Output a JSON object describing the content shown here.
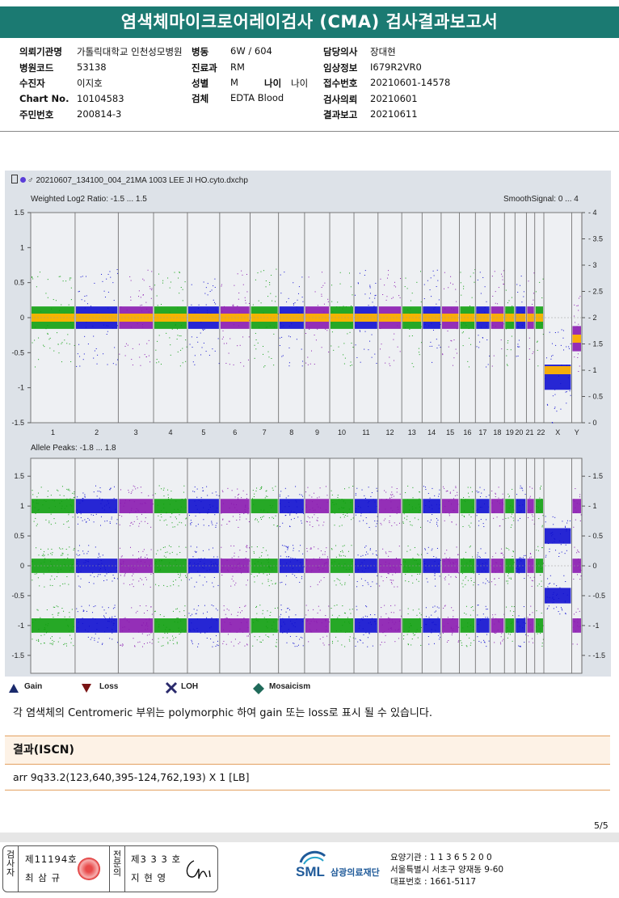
{
  "report_title": "염색체마이크로어레이검사 (CMA) 검사결과보고서",
  "patient_info": {
    "requester_label": "의뢰기관명",
    "requester_value": "가톨릭대학교 인천성모병원",
    "ward_label": "병동",
    "ward_value": "6W / 604",
    "doctor_label": "담당의사",
    "doctor_value": "장대현",
    "hospital_code_label": "병원코드",
    "hospital_code_value": "53138",
    "dept_label": "진료과",
    "dept_value": "RM",
    "clinical_label": "임상정보",
    "clinical_value": "I679R2VR0",
    "recipient_label": "수진자",
    "recipient_value": "이지호",
    "sex_label": "성별",
    "sex_value": "M",
    "age_label": "나이",
    "age_value": "나이",
    "accession_label": "접수번호",
    "accession_value": "20210601-14578",
    "chart_label": "Chart No.",
    "chart_value": "10104583",
    "specimen_label": "검체",
    "specimen_value": "EDTA Blood",
    "test_req_label": "검사의뢰",
    "test_req_value": "20210601",
    "rrn_label": "주민번호",
    "rrn_value": "200814-3",
    "report_date_label": "결과보고",
    "report_date_value": "20210611"
  },
  "chart_data": [
    {
      "type": "scatter",
      "file_name": "20210607_134100_004_21MA 1003 LEE JI HO.cyto.dxchp",
      "title": "Weighted Log2 Ratio: -1.5 ... 1.5",
      "right_title": "SmoothSignal: 0 ... 4",
      "ylim": [
        -1.5,
        1.5
      ],
      "y_ticks": [
        "1.5",
        "1",
        "0.5",
        "0",
        "-0.5",
        "-1",
        "-1.5"
      ],
      "y2lim": [
        0,
        4
      ],
      "y2_ticks": [
        "4",
        "3.5",
        "3",
        "2.5",
        "2",
        "1.5",
        "1",
        "0.5",
        "0"
      ],
      "categories": [
        "1",
        "2",
        "3",
        "4",
        "5",
        "6",
        "7",
        "8",
        "9",
        "10",
        "11",
        "12",
        "13",
        "14",
        "15",
        "16",
        "17",
        "18",
        "19",
        "20",
        "21",
        "22",
        "X",
        "Y"
      ],
      "colors": [
        "#10a010",
        "#1010d0",
        "#8a1ab0"
      ],
      "smooth_color": "#ffb400",
      "log2_level": [
        0,
        0,
        0,
        0,
        0,
        0,
        0,
        0,
        0,
        0,
        0,
        0,
        0,
        0,
        0,
        0,
        0,
        0,
        0,
        0,
        0,
        0,
        -0.85,
        -0.3
      ],
      "smooth_level": [
        2,
        2,
        2,
        2,
        2,
        2,
        2,
        2,
        2,
        2,
        2,
        2,
        2,
        2,
        2,
        2,
        2,
        2,
        2,
        2,
        2,
        2,
        1,
        1.6
      ]
    },
    {
      "type": "scatter",
      "title": "Allele Peaks: -1.8 ... 1.8",
      "ylim": [
        -1.8,
        1.8
      ],
      "y_ticks": [
        "1.5",
        "1",
        "0.5",
        "0",
        "-0.5",
        "-1",
        "-1.5"
      ],
      "y2_ticks": [
        "1.5",
        "1",
        "0.5",
        "0",
        "-0.5",
        "-1",
        "-1.5"
      ],
      "peaks_autosome": [
        1,
        0,
        -1
      ],
      "peaks_x": [
        0.5,
        -0.5
      ]
    }
  ],
  "legend": {
    "gain": "Gain",
    "loss": "Loss",
    "loh": "LOH",
    "mosaicism": "Mosaicism"
  },
  "note": "각 염색체의 Centromeric 부위는 polymorphic 하여 gain 또는 loss로 표시 될 수 있습니다.",
  "result": {
    "heading": "결과(ISCN)",
    "value": "arr 9q33.2(123,640,395-124,762,193) X 1 [LB]"
  },
  "page_number": "5/5",
  "signature": {
    "col1_vertical": "검사자",
    "tester_license": "제11194호",
    "tester_name": "최 삼 규",
    "col2_vertical": "전문의",
    "specialist_license": "제3 3 3 호",
    "specialist_name": "지 현 영"
  },
  "footer": {
    "logo_text": "SML",
    "org_name": "삼광의료재단",
    "line1": "요양기관 : 1 1 3 6 5 2 0 0",
    "line2": "서울특별시 서초구 양재동 9-60",
    "line3": "대표번호 : 1661-5117"
  }
}
